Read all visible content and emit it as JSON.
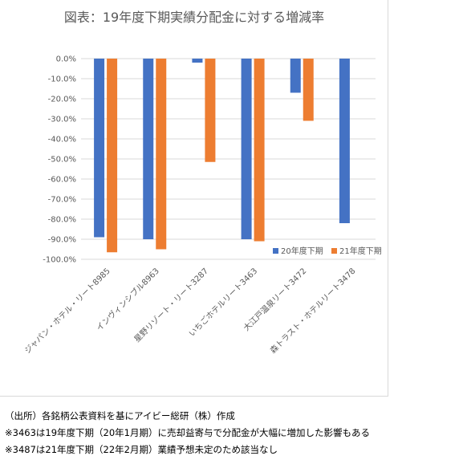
{
  "chart_data": {
    "type": "bar",
    "title": "図表：19年度下期実績分配金に対する増減率",
    "categories": [
      "ジャパン・ホテル・リート8985",
      "インヴィンシブル8963",
      "星野リゾート・リート3287",
      "いちごホテルリート3463",
      "大江戸温泉リート3472",
      "森トラスト・ホテルリート3478"
    ],
    "series": [
      {
        "name": "20年度下期",
        "values": [
          -89.0,
          -90.0,
          -2.0,
          -90.0,
          -17.0,
          -82.0
        ]
      },
      {
        "name": "21年度下期",
        "values": [
          -96.5,
          -95.0,
          -51.5,
          -91.0,
          -31.0,
          null
        ]
      }
    ],
    "ylim": [
      -100,
      0
    ],
    "yticks": [
      "0.0%",
      "-10.0%",
      "-20.0%",
      "-30.0%",
      "-40.0%",
      "-50.0%",
      "-60.0%",
      "-70.0%",
      "-80.0%",
      "-90.0%",
      "-100.0%"
    ],
    "grid": true,
    "legend_position": "bottom-right",
    "colors": {
      "20年度下期": "#4472c4",
      "21年度下期": "#ed7d31",
      "grid": "#d9d9d9",
      "text": "#595959"
    }
  },
  "notes": [
    "（出所）各銘柄公表資料を基にアイビー総研（株）作成",
    "※3463は19年度下期（20年1月期）に売却益寄与で分配金が大幅に増加した影響もある",
    "※3487は21年度下期（22年2月期）業績予想未定のため該当なし"
  ]
}
